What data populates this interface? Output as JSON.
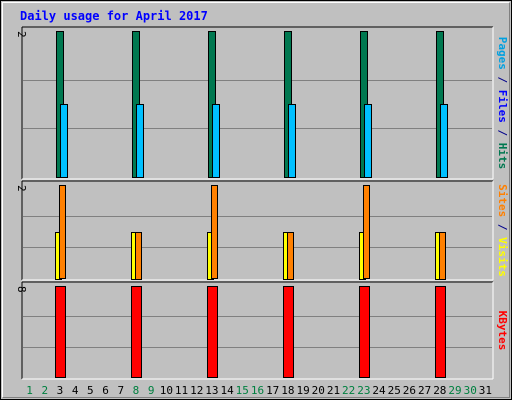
{
  "chart_data": [
    {
      "type": "bar",
      "title": "Daily usage for April 2017",
      "panel": "top",
      "ymax_label": "2",
      "ylim": [
        0,
        2
      ],
      "right_label": [
        {
          "text": "Pages",
          "color": "#00a0e0"
        },
        {
          "text": " / ",
          "color": "#00008b"
        },
        {
          "text": "Files",
          "color": "#0000ff"
        },
        {
          "text": " / ",
          "color": "#00008b"
        },
        {
          "text": "Hits",
          "color": "#007850"
        }
      ],
      "series": [
        {
          "name": "Hits",
          "color": "#007850",
          "points": [
            [
              3,
              2
            ],
            [
              8,
              2
            ],
            [
              13,
              2
            ],
            [
              18,
              2
            ],
            [
              23,
              2
            ],
            [
              28,
              2
            ]
          ]
        },
        {
          "name": "Files",
          "color": "#0000ff",
          "points": [
            [
              3,
              0
            ],
            [
              8,
              0
            ],
            [
              13,
              0
            ],
            [
              18,
              0
            ],
            [
              23,
              0
            ],
            [
              28,
              0
            ]
          ]
        },
        {
          "name": "Pages",
          "color": "#00c0ff",
          "points": [
            [
              3,
              1
            ],
            [
              8,
              1
            ],
            [
              13,
              1
            ],
            [
              18,
              1
            ],
            [
              23,
              1
            ],
            [
              28,
              1
            ]
          ]
        }
      ]
    },
    {
      "type": "bar",
      "panel": "middle",
      "ymax_label": "2",
      "ylim": [
        0,
        2
      ],
      "right_label": [
        {
          "text": "Sites",
          "color": "#ff8000"
        },
        {
          "text": " / ",
          "color": "#00008b"
        },
        {
          "text": "Visits",
          "color": "#ffff00"
        }
      ],
      "series": [
        {
          "name": "Visits",
          "color": "#ffff00",
          "points": [
            [
              3,
              1
            ],
            [
              8,
              1
            ],
            [
              13,
              1
            ],
            [
              18,
              1
            ],
            [
              23,
              1
            ],
            [
              28,
              1
            ]
          ]
        },
        {
          "name": "Sites",
          "color": "#ff8000",
          "points": [
            [
              3,
              2
            ],
            [
              8,
              1
            ],
            [
              13,
              2
            ],
            [
              18,
              1
            ],
            [
              23,
              2
            ],
            [
              28,
              1
            ]
          ]
        }
      ]
    },
    {
      "type": "bar",
      "panel": "bottom",
      "ymax_label": "8",
      "ylim": [
        0,
        8
      ],
      "right_label": [
        {
          "text": "KBytes",
          "color": "#ff0000"
        }
      ],
      "series": [
        {
          "name": "KBytes",
          "color": "#ff0000",
          "points": [
            [
              3,
              8
            ],
            [
              8,
              8
            ],
            [
              13,
              8
            ],
            [
              18,
              8
            ],
            [
              23,
              8
            ],
            [
              28,
              8
            ]
          ]
        }
      ]
    }
  ],
  "x_axis": {
    "days": [
      {
        "label": "1",
        "color": "#008040"
      },
      {
        "label": "2",
        "color": "#008040"
      },
      {
        "label": "3",
        "color": "#000000"
      },
      {
        "label": "4",
        "color": "#000000"
      },
      {
        "label": "5",
        "color": "#000000"
      },
      {
        "label": "6",
        "color": "#000000"
      },
      {
        "label": "7",
        "color": "#000000"
      },
      {
        "label": "8",
        "color": "#008040"
      },
      {
        "label": "9",
        "color": "#008040"
      },
      {
        "label": "10",
        "color": "#000000"
      },
      {
        "label": "11",
        "color": "#000000"
      },
      {
        "label": "12",
        "color": "#000000"
      },
      {
        "label": "13",
        "color": "#000000"
      },
      {
        "label": "14",
        "color": "#000000"
      },
      {
        "label": "15",
        "color": "#008040"
      },
      {
        "label": "16",
        "color": "#008040"
      },
      {
        "label": "17",
        "color": "#000000"
      },
      {
        "label": "18",
        "color": "#000000"
      },
      {
        "label": "19",
        "color": "#000000"
      },
      {
        "label": "20",
        "color": "#000000"
      },
      {
        "label": "21",
        "color": "#000000"
      },
      {
        "label": "22",
        "color": "#008040"
      },
      {
        "label": "23",
        "color": "#008040"
      },
      {
        "label": "24",
        "color": "#000000"
      },
      {
        "label": "25",
        "color": "#000000"
      },
      {
        "label": "26",
        "color": "#000000"
      },
      {
        "label": "27",
        "color": "#000000"
      },
      {
        "label": "28",
        "color": "#000000"
      },
      {
        "label": "29",
        "color": "#008040"
      },
      {
        "label": "30",
        "color": "#008040"
      },
      {
        "label": "31",
        "color": "#000000"
      }
    ]
  },
  "colors": {
    "title": "#0000ff",
    "background": "#c0c0c0",
    "grid": "#808080",
    "bar_outline": "#000000"
  }
}
